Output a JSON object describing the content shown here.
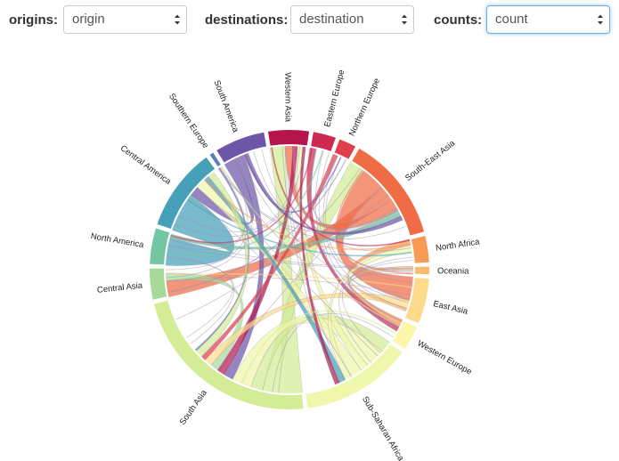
{
  "controls": {
    "origins": {
      "label": "origins:",
      "value": "origin"
    },
    "destinations": {
      "label": "destinations:",
      "value": "destination"
    },
    "counts": {
      "label": "counts:",
      "value": "count"
    }
  },
  "icons": {
    "select_arrows": "up-down-chevron-icon"
  },
  "diagram": {
    "type": "chord",
    "regions": [
      {
        "name": "Western Asia",
        "color": "#b5154b",
        "size": 4.5
      },
      {
        "name": "Eastern Europe",
        "color": "#cc2a51",
        "size": 2.6
      },
      {
        "name": "Northern Europe",
        "color": "#e23f4b",
        "size": 2.0
      },
      {
        "name": "South-East Asia",
        "color": "#f06c45",
        "size": 11.5
      },
      {
        "name": "North Africa",
        "color": "#f99a54",
        "size": 3.0
      },
      {
        "name": "Oceania",
        "color": "#fcba6c",
        "size": 1.0
      },
      {
        "name": "East Asia",
        "color": "#fddb8b",
        "size": 5.0
      },
      {
        "name": "Western Europe",
        "color": "#fcf6a8",
        "size": 2.8
      },
      {
        "name": "Sub-Saharan Africa",
        "color": "#f0f7ac",
        "size": 12.0
      },
      {
        "name": "South Asia",
        "color": "#d3ec95",
        "size": 21.0
      },
      {
        "name": "Central Asia",
        "color": "#a6da9b",
        "size": 3.5
      },
      {
        "name": "North America",
        "color": "#74c6a3",
        "size": 4.0
      },
      {
        "name": "Central America",
        "color": "#45a0b8",
        "size": 9.0
      },
      {
        "name": "Southern Europe",
        "color": "#5c7ec0",
        "size": 0.6
      },
      {
        "name": "South America",
        "color": "#6d56a8",
        "size": 5.5
      }
    ],
    "flows": [
      {
        "from": "Central America",
        "to": "North America",
        "value": 6.0
      },
      {
        "from": "South Asia",
        "to": "Western Asia",
        "value": 3.0
      },
      {
        "from": "South Asia",
        "to": "South-East Asia",
        "value": 2.0
      },
      {
        "from": "South Asia",
        "to": "Sub-Saharan Africa",
        "value": 1.5
      },
      {
        "from": "Sub-Saharan Africa",
        "to": "South Asia",
        "value": 2.5
      },
      {
        "from": "South-East Asia",
        "to": "East Asia",
        "value": 3.0
      },
      {
        "from": "South-East Asia",
        "to": "Central Asia",
        "value": 2.0
      },
      {
        "from": "South-East Asia",
        "to": "Western Asia",
        "value": 1.5
      },
      {
        "from": "South America",
        "to": "Central America",
        "value": 1.5
      },
      {
        "from": "South America",
        "to": "South Asia",
        "value": 1.2
      },
      {
        "from": "Western Asia",
        "to": "South Asia",
        "value": 1.0
      },
      {
        "from": "Sub-Saharan Africa",
        "to": "Western Asia",
        "value": 1.0
      },
      {
        "from": "Sub-Saharan Africa",
        "to": "Central America",
        "value": 1.5
      },
      {
        "from": "Central Asia",
        "to": "South Asia",
        "value": 1.0
      },
      {
        "from": "East Asia",
        "to": "South Asia",
        "value": 1.0
      },
      {
        "from": "North Africa",
        "to": "Western Europe",
        "value": 0.8
      },
      {
        "from": "Eastern Europe",
        "to": "Western Europe",
        "value": 0.8
      },
      {
        "from": "Northern Europe",
        "to": "South Asia",
        "value": 0.6
      },
      {
        "from": "North America",
        "to": "South-East Asia",
        "value": 0.8
      },
      {
        "from": "Sub-Saharan Africa",
        "to": "North Africa",
        "value": 0.8
      },
      {
        "from": "Central America",
        "to": "Sub-Saharan Africa",
        "value": 0.8
      },
      {
        "from": "South Asia",
        "to": "Central America",
        "value": 1.0
      },
      {
        "from": "South America",
        "to": "South-East Asia",
        "value": 0.6
      },
      {
        "from": "Oceania",
        "to": "East Asia",
        "value": 0.4
      },
      {
        "from": "Western Asia",
        "to": "Sub-Saharan Africa",
        "value": 0.6
      },
      {
        "from": "Southern Europe",
        "to": "South Asia",
        "value": 0.2
      }
    ]
  }
}
